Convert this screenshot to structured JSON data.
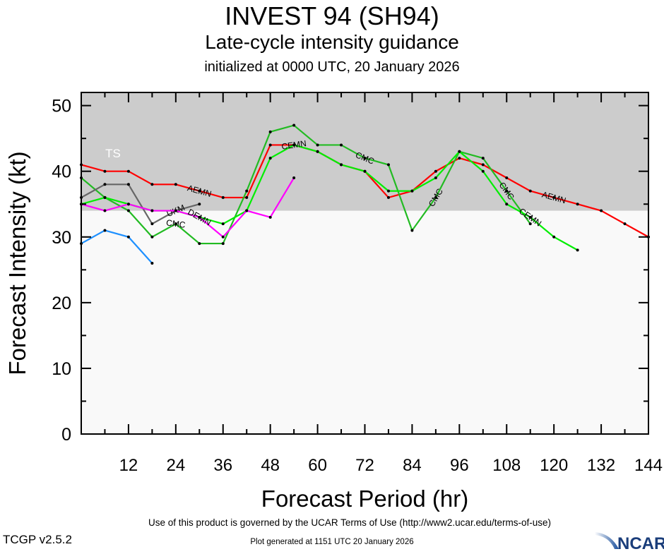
{
  "header": {
    "title": "INVEST 94 (SH94)",
    "subtitle": "Late-cycle intensity guidance",
    "init": "initialized at 0000 UTC, 20 January 2026"
  },
  "footer": {
    "terms": "Use of this product is governed by the UCAR Terms of Use (http://www2.ucar.edu/terms-of-use)",
    "generated": "Plot generated at 1151 UTC   20 January 2026",
    "version": "TCGP v2.5.2",
    "logo": "NCAR"
  },
  "chart_data": {
    "type": "line",
    "xlabel": "Forecast Period (hr)",
    "ylabel": "Forecast Intensity (kt)",
    "xlim": [
      0,
      144
    ],
    "ylim": [
      0,
      52
    ],
    "xticks": [
      12,
      24,
      36,
      48,
      60,
      72,
      84,
      96,
      108,
      120,
      132,
      144
    ],
    "yticks": [
      0,
      10,
      20,
      30,
      40,
      50
    ],
    "band": {
      "label": "TS",
      "from": 34,
      "to": 52,
      "color": "#cccccc"
    },
    "plot_background": "#f9f9f9",
    "series": [
      {
        "name": "AEMN",
        "color": "#ff0000",
        "x": [
          0,
          6,
          12,
          18,
          24,
          30,
          36,
          42,
          48,
          54,
          60,
          66,
          72,
          78,
          84,
          90,
          96,
          102,
          108,
          114,
          120,
          126,
          132,
          138,
          144
        ],
        "y": [
          41,
          40,
          40,
          38,
          38,
          37,
          36,
          36,
          44,
          44,
          43,
          41,
          40,
          36,
          37,
          40,
          42,
          41,
          39,
          37,
          36,
          35,
          34,
          32,
          30
        ]
      },
      {
        "name": "CMC",
        "color": "#22bb22",
        "x": [
          0,
          6,
          12,
          18,
          24,
          30,
          36,
          42,
          48,
          54,
          60,
          66,
          72,
          78,
          84,
          90,
          96,
          102,
          108,
          114
        ],
        "y": [
          39,
          36,
          34,
          30,
          32,
          29,
          29,
          37,
          46,
          47,
          44,
          44,
          42,
          41,
          31,
          36,
          43,
          42,
          37,
          32
        ]
      },
      {
        "name": "CEMN",
        "color": "#00ee00",
        "x": [
          0,
          6,
          12,
          18,
          24,
          30,
          36,
          42,
          48,
          54,
          60,
          66,
          72,
          78,
          84,
          90,
          96,
          102,
          108,
          114,
          120,
          126
        ],
        "y": [
          35,
          36,
          35,
          34,
          34,
          33,
          32,
          34,
          42,
          44,
          43,
          41,
          40,
          37,
          37,
          39,
          43,
          40,
          35,
          33,
          30,
          28
        ]
      },
      {
        "name": "UKM",
        "color": "#666666",
        "x": [
          0,
          6,
          12,
          18,
          24,
          30
        ],
        "y": [
          36,
          38,
          38,
          32,
          34,
          35
        ]
      },
      {
        "name": "DEMN",
        "color": "#ff00ff",
        "x": [
          0,
          6,
          12,
          18,
          24,
          30,
          36,
          42,
          48,
          54
        ],
        "y": [
          35,
          34,
          35,
          34,
          34,
          33,
          30,
          34,
          33,
          39
        ]
      },
      {
        "name": "",
        "color": "#1e90ff",
        "x": [
          0,
          6,
          12,
          18
        ],
        "y": [
          29,
          31,
          30,
          26
        ]
      }
    ]
  }
}
